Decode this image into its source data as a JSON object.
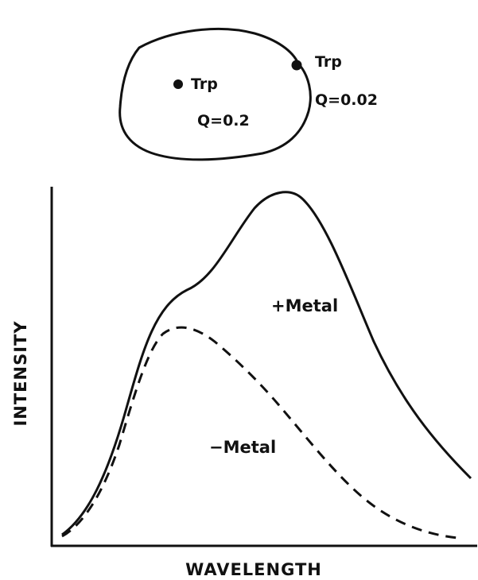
{
  "colors": {
    "ink": "#111111",
    "background": "#ffffff"
  },
  "protein_inset": {
    "shape": "blob-outline",
    "residues": [
      {
        "label": "Trp",
        "q_text": "Q=0.2",
        "location": "buried-inside"
      },
      {
        "label": "Trp",
        "q_text": "Q=0.02",
        "location": "surface"
      }
    ]
  },
  "axes": {
    "xlabel": "WAVELENGTH",
    "ylabel": "INTENSITY"
  },
  "curves": [
    {
      "label": "+Metal",
      "style": "solid"
    },
    {
      "label": "−Metal",
      "style": "dashed"
    }
  ]
}
